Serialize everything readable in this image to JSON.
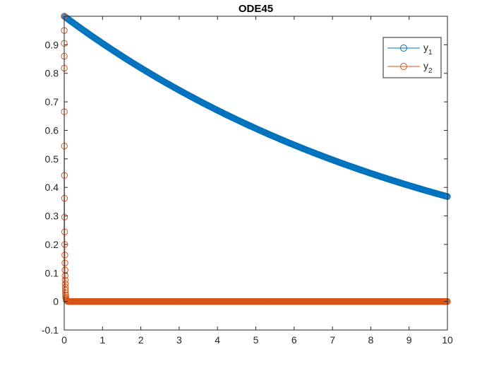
{
  "chart_data": {
    "type": "line",
    "title": "ODE45",
    "xlabel": "",
    "ylabel": "",
    "xlim": [
      0,
      10
    ],
    "ylim": [
      -0.1,
      1
    ],
    "xticks": [
      0,
      1,
      2,
      3,
      4,
      5,
      6,
      7,
      8,
      9,
      10
    ],
    "yticks": [
      -0.1,
      0,
      0.1,
      0.2,
      0.3,
      0.4,
      0.5,
      0.6,
      0.7,
      0.8,
      0.9
    ],
    "ytick_labels": [
      "-0.1",
      "0",
      "0.1",
      "0.2",
      "0.3",
      "0.4",
      "0.5",
      "0.6",
      "0.7",
      "0.8",
      "0.9"
    ],
    "xtick_labels": [
      "0",
      "1",
      "2",
      "3",
      "4",
      "5",
      "6",
      "7",
      "8",
      "9",
      "10"
    ],
    "grid": false,
    "legend_position": "top-right",
    "marker": "circle",
    "series": [
      {
        "name": "y1",
        "legend_base": "y",
        "legend_sub": "1",
        "color": "#0072BD",
        "x_step": 0.02,
        "x_start": 0,
        "x_end": 10,
        "formula": "exp(-0.1*x)",
        "y_start": 1.0,
        "y_end": 0.368
      },
      {
        "name": "y2",
        "legend_base": "y",
        "legend_sub": "2",
        "color": "#D95319",
        "x": [
          0,
          0.0004,
          0.0008,
          0.0012,
          0.0016,
          0.002,
          0.004,
          0.006,
          0.008,
          0.01,
          0.012,
          0.014,
          0.016,
          0.018,
          0.02,
          0.022,
          0.024,
          0.026,
          0.028,
          0.03,
          0.033,
          0.036,
          0.04,
          0.045,
          0.05,
          0.06,
          0.08,
          0.1
        ],
        "y": [
          1.0,
          0.95,
          0.905,
          0.86,
          0.818,
          0.665,
          0.545,
          0.442,
          0.362,
          0.296,
          0.244,
          0.2,
          0.163,
          0.135,
          0.11,
          0.09,
          0.075,
          0.062,
          0.05,
          0.04,
          0.03,
          0.022,
          0.015,
          0.01,
          0.006,
          0.003,
          0.001,
          0.0
        ],
        "tail_step": 0.02,
        "tail_end": 10,
        "tail_value": 0.0
      }
    ]
  }
}
